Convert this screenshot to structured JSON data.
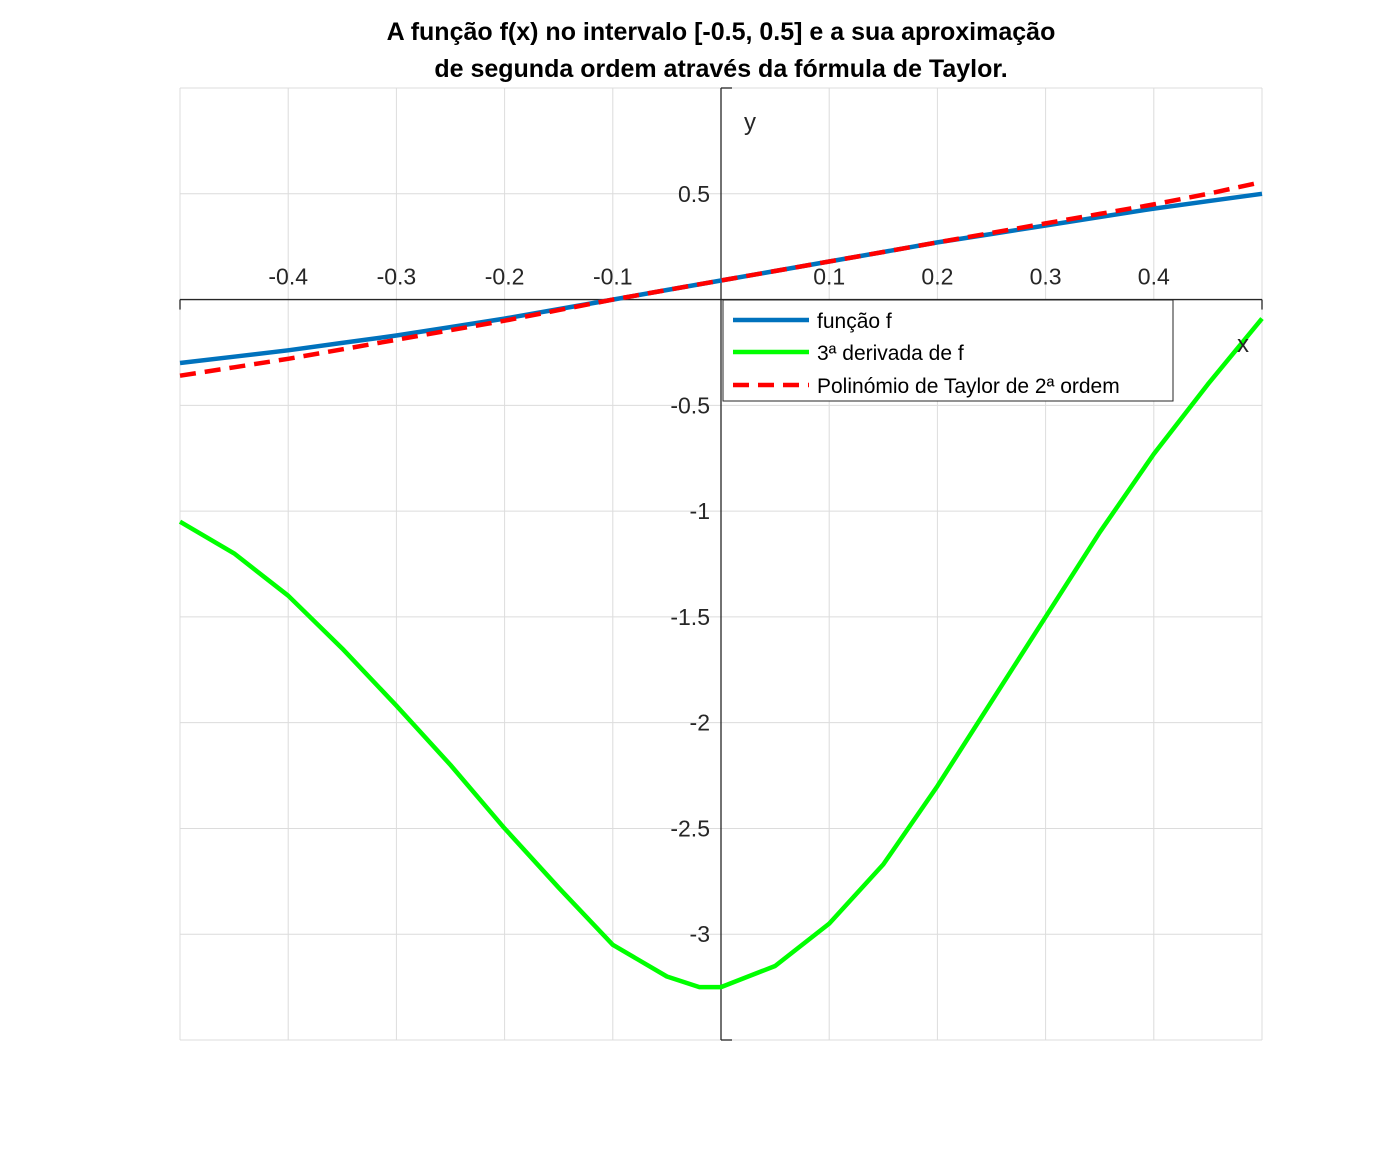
{
  "chart_data": {
    "type": "line",
    "title": [
      "A função f(x) no intervalo [-0.5, 0.5] e a sua aproximação",
      "de segunda ordem através da fórmula de Taylor."
    ],
    "xlabel": "x",
    "ylabel": "y",
    "xlim": [
      -0.5,
      0.5
    ],
    "ylim": [
      -3.5,
      1.0
    ],
    "grid": true,
    "axis_location": "origin",
    "x_ticks": [
      -0.4,
      -0.3,
      -0.2,
      -0.1,
      0.1,
      0.2,
      0.3,
      0.4
    ],
    "x_tick_labels": [
      "-0.4",
      "-0.3",
      "-0.2",
      "-0.1",
      "0.1",
      "0.2",
      "0.3",
      "0.4"
    ],
    "y_ticks": [
      0.5,
      -0.5,
      -1,
      -1.5,
      -2,
      -2.5,
      -3
    ],
    "y_tick_labels": [
      "0.5",
      "-0.5",
      "-1",
      "-1.5",
      "-2",
      "-2.5",
      "-3"
    ],
    "x_grid": [
      -0.5,
      -0.4,
      -0.3,
      -0.2,
      -0.1,
      0,
      0.1,
      0.2,
      0.3,
      0.4,
      0.5
    ],
    "y_grid": [
      1.0,
      0.5,
      0,
      -0.5,
      -1,
      -1.5,
      -2,
      -2.5,
      -3,
      -3.5
    ],
    "legend_position": "inside, right of y-axis, just below x-axis",
    "series": [
      {
        "name": "função f",
        "color": "#0072BD",
        "dash": "solid",
        "x": [
          -0.5,
          -0.45,
          -0.4,
          -0.35,
          -0.3,
          -0.25,
          -0.2,
          -0.15,
          -0.1,
          -0.05,
          0,
          0.05,
          0.1,
          0.15,
          0.2,
          0.25,
          0.3,
          0.35,
          0.4,
          0.45,
          0.5
        ],
        "y": [
          -0.3,
          -0.27,
          -0.24,
          -0.205,
          -0.17,
          -0.13,
          -0.09,
          -0.045,
          0.0,
          0.045,
          0.09,
          0.135,
          0.18,
          0.225,
          0.27,
          0.31,
          0.35,
          0.39,
          0.43,
          0.465,
          0.5
        ]
      },
      {
        "name": "3ª derivada de f",
        "color": "#00FF00",
        "dash": "solid",
        "x": [
          -0.5,
          -0.45,
          -0.4,
          -0.35,
          -0.3,
          -0.25,
          -0.2,
          -0.15,
          -0.1,
          -0.05,
          -0.02,
          0,
          0.05,
          0.1,
          0.15,
          0.2,
          0.25,
          0.3,
          0.35,
          0.4,
          0.45,
          0.5
        ],
        "y": [
          -1.05,
          -1.2,
          -1.4,
          -1.65,
          -1.92,
          -2.2,
          -2.5,
          -2.78,
          -3.05,
          -3.2,
          -3.25,
          -3.25,
          -3.15,
          -2.95,
          -2.67,
          -2.3,
          -1.9,
          -1.5,
          -1.1,
          -0.73,
          -0.4,
          -0.09
        ]
      },
      {
        "name": "Polinómio de Taylor de 2ª ordem",
        "color": "#FF0000",
        "dash": "dashed",
        "x": [
          -0.5,
          -0.45,
          -0.4,
          -0.35,
          -0.3,
          -0.25,
          -0.2,
          -0.15,
          -0.1,
          -0.05,
          0,
          0.05,
          0.1,
          0.15,
          0.2,
          0.25,
          0.3,
          0.35,
          0.4,
          0.45,
          0.5
        ],
        "y": [
          -0.36,
          -0.32,
          -0.28,
          -0.235,
          -0.19,
          -0.145,
          -0.1,
          -0.05,
          0.0,
          0.045,
          0.09,
          0.135,
          0.18,
          0.225,
          0.27,
          0.315,
          0.36,
          0.405,
          0.45,
          0.5,
          0.555
        ]
      }
    ]
  }
}
